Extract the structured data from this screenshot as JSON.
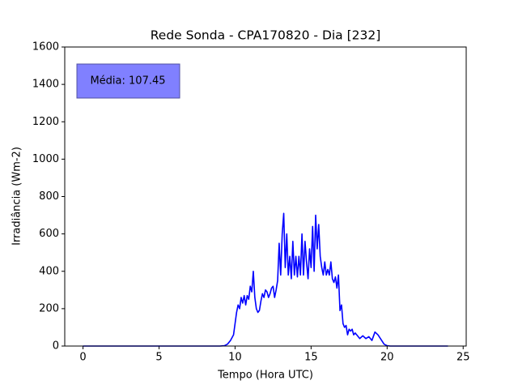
{
  "chart_data": {
    "type": "line",
    "title": "Rede Sonda - CPA170820 - Dia [232]",
    "x_label": "Tempo (Hora UTC)",
    "y_label": "Irradiância (Wm-2)",
    "annotation": "Média: 107.45",
    "xlim": [
      -1.2,
      25.2
    ],
    "ylim": [
      0,
      1600
    ],
    "xticks": [
      0,
      5,
      10,
      15,
      20,
      25
    ],
    "yticks": [
      0,
      200,
      400,
      600,
      800,
      1000,
      1200,
      1400,
      1600
    ],
    "x": [
      0,
      9,
      9.3,
      9.5,
      9.7,
      9.9,
      10.0,
      10.1,
      10.2,
      10.3,
      10.4,
      10.5,
      10.6,
      10.7,
      10.8,
      10.9,
      11.0,
      11.1,
      11.2,
      11.3,
      11.4,
      11.5,
      11.6,
      11.7,
      11.8,
      11.9,
      12.0,
      12.1,
      12.2,
      12.3,
      12.4,
      12.5,
      12.6,
      12.7,
      12.8,
      12.9,
      13.0,
      13.1,
      13.2,
      13.3,
      13.4,
      13.5,
      13.6,
      13.7,
      13.8,
      13.9,
      14.0,
      14.1,
      14.2,
      14.3,
      14.4,
      14.5,
      14.6,
      14.7,
      14.8,
      14.9,
      15.0,
      15.1,
      15.2,
      15.3,
      15.4,
      15.5,
      15.6,
      15.7,
      15.8,
      15.9,
      16.0,
      16.1,
      16.2,
      16.3,
      16.4,
      16.5,
      16.6,
      16.7,
      16.8,
      16.9,
      17.0,
      17.1,
      17.2,
      17.3,
      17.4,
      17.5,
      17.6,
      17.7,
      17.8,
      17.9,
      18.0,
      18.2,
      18.4,
      18.6,
      18.8,
      19.0,
      19.2,
      19.4,
      19.6,
      19.8,
      20.0,
      20.2,
      24
    ],
    "series": [
      {
        "name": "Irradiância",
        "color": "#0000ff",
        "values": [
          0,
          0,
          2,
          10,
          30,
          60,
          120,
          180,
          220,
          200,
          260,
          230,
          270,
          220,
          270,
          250,
          320,
          290,
          400,
          260,
          200,
          180,
          190,
          240,
          280,
          260,
          300,
          290,
          260,
          280,
          310,
          320,
          260,
          300,
          350,
          550,
          380,
          600,
          710,
          420,
          600,
          380,
          480,
          360,
          560,
          380,
          480,
          370,
          480,
          380,
          600,
          380,
          560,
          450,
          360,
          520,
          420,
          640,
          400,
          700,
          520,
          650,
          480,
          420,
          380,
          450,
          380,
          410,
          380,
          450,
          360,
          340,
          370,
          310,
          380,
          190,
          220,
          120,
          100,
          110,
          60,
          90,
          80,
          90,
          60,
          70,
          60,
          40,
          55,
          40,
          50,
          30,
          75,
          60,
          35,
          10,
          2,
          0,
          0
        ]
      }
    ]
  }
}
